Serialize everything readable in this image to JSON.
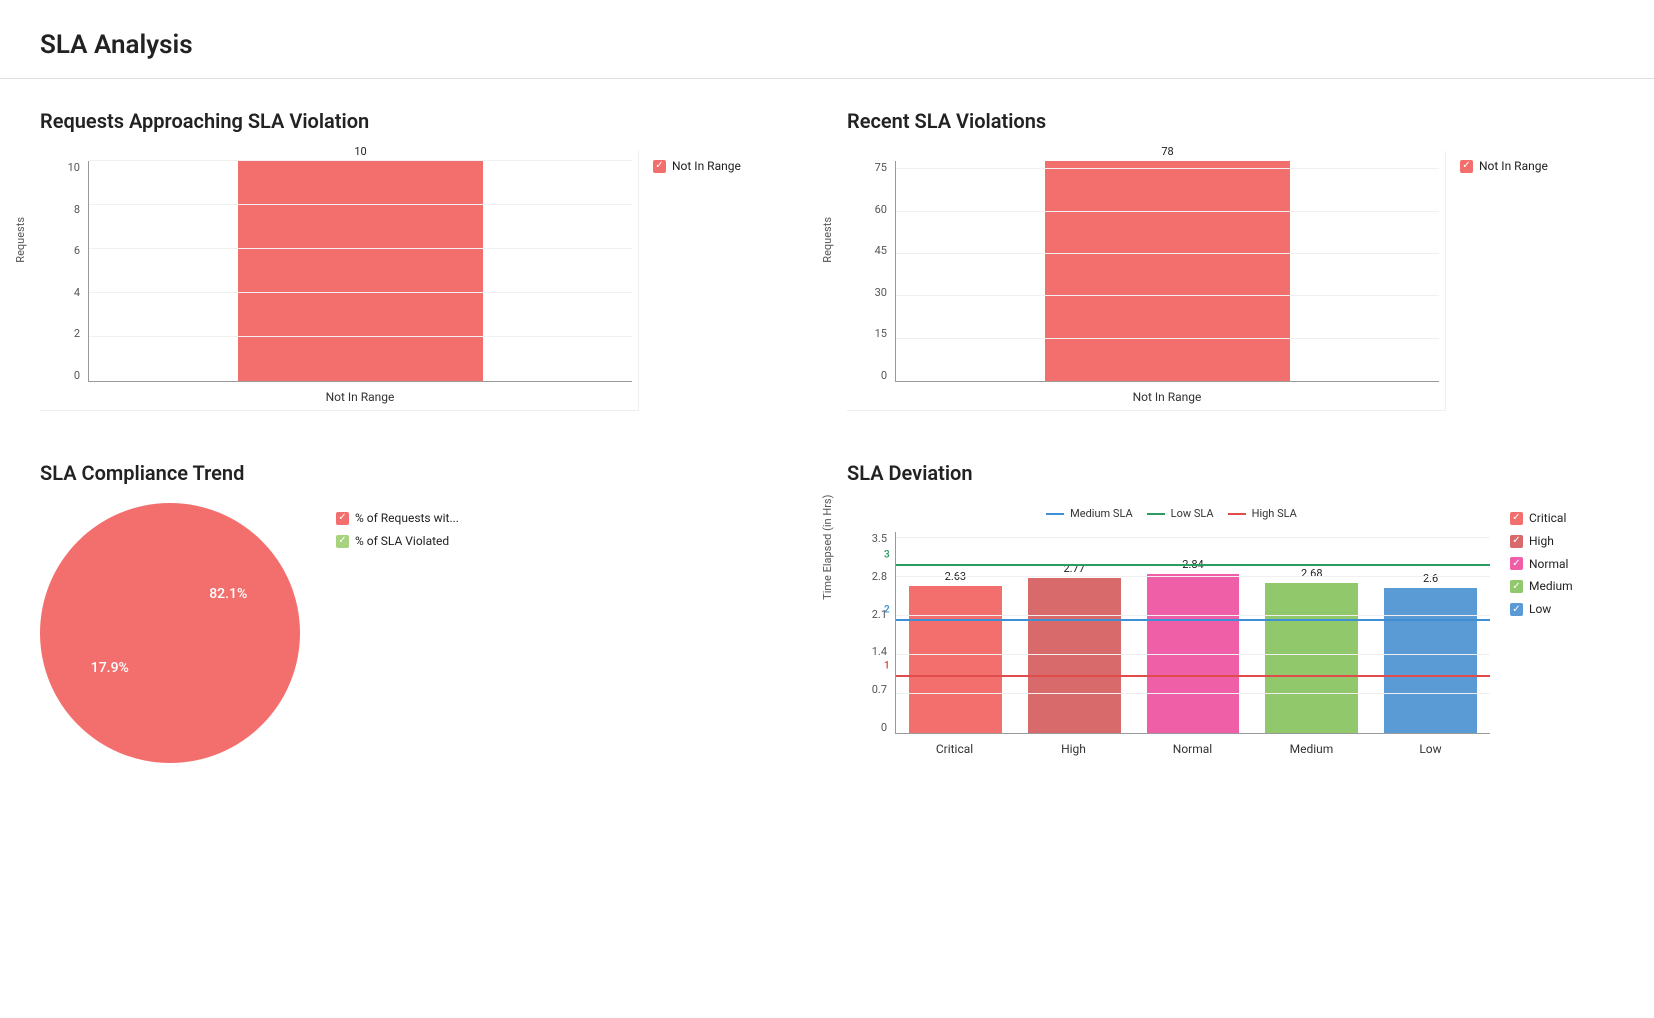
{
  "page": {
    "title": "SLA Analysis"
  },
  "approaching": {
    "title": "Requests Approaching SLA Violation",
    "type": "bar",
    "ylabel": "Requests",
    "categories": [
      "Not In Range"
    ],
    "values": [
      10
    ],
    "bar_colors": [
      "#f36f6d"
    ],
    "ylim": [
      0,
      10
    ],
    "yticks": [
      0,
      2,
      4,
      6,
      8,
      10
    ],
    "grid_color": "#f0f0f0",
    "background_color": "#ffffff",
    "legend": [
      {
        "label": "Not In Range",
        "color": "#f36f6d",
        "check_color": "#ffffff"
      }
    ],
    "label_fontsize": 11,
    "bar_width": 0.45
  },
  "recent": {
    "title": "Recent SLA Violations",
    "type": "bar",
    "ylabel": "Requests",
    "categories": [
      "Not In Range"
    ],
    "values": [
      78
    ],
    "bar_colors": [
      "#f36f6d"
    ],
    "ylim": [
      0,
      78
    ],
    "yticks": [
      0,
      15,
      30,
      45,
      60,
      75
    ],
    "grid_color": "#f0f0f0",
    "background_color": "#ffffff",
    "legend": [
      {
        "label": "Not In Range",
        "color": "#f36f6d",
        "check_color": "#ffffff"
      }
    ],
    "label_fontsize": 11,
    "bar_width": 0.45
  },
  "compliance": {
    "title": "SLA Compliance Trend",
    "type": "pie",
    "slices": [
      {
        "label": "% of Requests wit...",
        "value": 82.1,
        "display": "82.1%",
        "color": "#f36f6d"
      },
      {
        "label": "% of SLA Violated",
        "value": 17.9,
        "display": "17.9%",
        "color": "#a7d37e"
      }
    ],
    "start_angle_deg": 270,
    "label_color": "#ffffff",
    "label_fontsize": 14,
    "background_color": "#ffffff",
    "legend": [
      {
        "label": "% of Requests wit...",
        "color": "#f36f6d",
        "check_color": "#ffffff"
      },
      {
        "label": "% of SLA Violated",
        "color": "#a7d37e",
        "check_color": "#ffffff"
      }
    ]
  },
  "deviation": {
    "title": "SLA Deviation",
    "type": "bar",
    "ylabel": "Time Elapsed (in Hrs)",
    "categories": [
      "Critical",
      "High",
      "Normal",
      "Medium",
      "Low"
    ],
    "values": [
      2.63,
      2.77,
      2.84,
      2.68,
      2.6
    ],
    "bar_colors": [
      "#f36f6d",
      "#d96a6c",
      "#ee5fa7",
      "#91c86c",
      "#5b9bd5"
    ],
    "ylim": [
      0,
      3.6
    ],
    "yticks": [
      0,
      0.7,
      1.4,
      2.1,
      2.8,
      3.5
    ],
    "grid_color": "#f0f0f0",
    "background_color": "#ffffff",
    "label_fontsize": 11,
    "bar_width": 0.78,
    "reference_lines": [
      {
        "label": "Medium SLA",
        "value": 2,
        "display": "2",
        "color": "#3f8fd4"
      },
      {
        "label": "Low SLA",
        "value": 3,
        "display": "3",
        "color": "#2e9c62"
      },
      {
        "label": "High SLA",
        "value": 1,
        "display": "1",
        "color": "#e04b4b"
      }
    ],
    "legend": [
      {
        "label": "Critical",
        "color": "#f36f6d",
        "check_color": "#ffffff"
      },
      {
        "label": "High",
        "color": "#d96a6c",
        "check_color": "#ffffff"
      },
      {
        "label": "Normal",
        "color": "#ee5fa7",
        "check_color": "#ffffff"
      },
      {
        "label": "Medium",
        "color": "#91c86c",
        "check_color": "#ffffff"
      },
      {
        "label": "Low",
        "color": "#5b9bd5",
        "check_color": "#ffffff"
      }
    ]
  }
}
